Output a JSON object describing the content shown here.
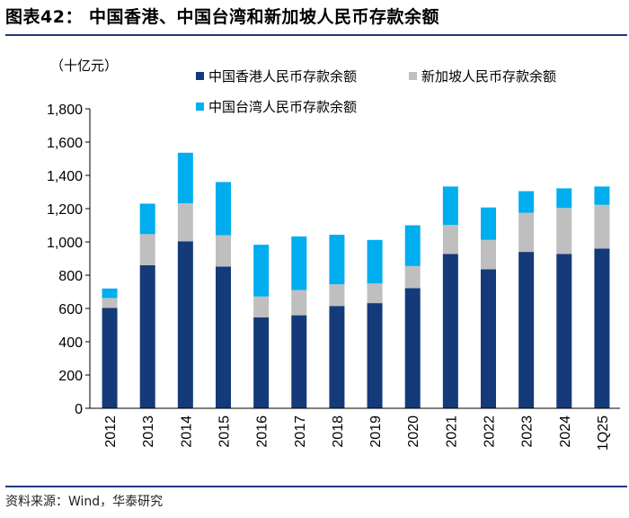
{
  "header": {
    "title": "图表42：  中国香港、中国台湾和新加坡人民币存款余额"
  },
  "footer": {
    "source": "资料来源：Wind，华泰研究"
  },
  "chart_data": {
    "type": "bar",
    "stacked": true,
    "title": "中国香港、中国台湾和新加坡人民币存款余额",
    "unit_label": "（十亿元）",
    "ylabel": "（十亿元）",
    "xlabel": "",
    "ylim": [
      0,
      1800
    ],
    "yticks": [
      0,
      200,
      400,
      600,
      800,
      1000,
      1200,
      1400,
      1600,
      1800
    ],
    "ytick_labels": [
      "0",
      "200",
      "400",
      "600",
      "800",
      "1,000",
      "1,200",
      "1,400",
      "1,600",
      "1,800"
    ],
    "categories": [
      "2012",
      "2013",
      "2014",
      "2015",
      "2016",
      "2017",
      "2018",
      "2019",
      "2020",
      "2021",
      "2022",
      "2023",
      "2024",
      "1Q25"
    ],
    "series": [
      {
        "name": "中国香港人民币存款余额",
        "color": "#143a7a",
        "values": [
          603,
          860,
          1004,
          852,
          547,
          559,
          615,
          632,
          722,
          927,
          835,
          940,
          927,
          960
        ]
      },
      {
        "name": "新加坡人民币存款余额",
        "color": "#bfbfbf",
        "values": [
          60,
          187,
          228,
          188,
          125,
          152,
          130,
          118,
          133,
          175,
          177,
          235,
          277,
          263
        ]
      },
      {
        "name": "中国台湾人民币存款余额",
        "color": "#00aeef",
        "values": [
          57,
          183,
          304,
          320,
          311,
          322,
          298,
          262,
          245,
          231,
          195,
          130,
          118,
          110
        ]
      }
    ],
    "legend_position": "top"
  }
}
